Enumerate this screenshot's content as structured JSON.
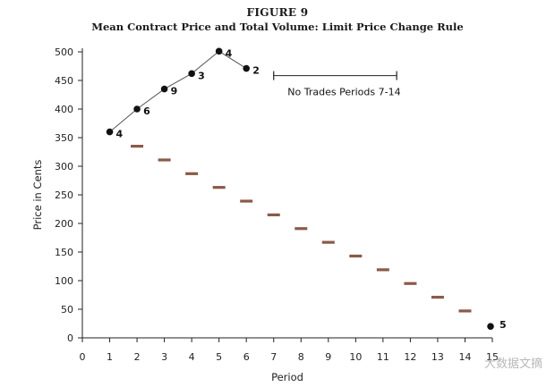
{
  "figure_label": "FIGURE 9",
  "watermark_text": "大数据文摘",
  "chart_data": {
    "type": "scatter",
    "title": "Mean Contract Price and Total Volume: Limit Price Change Rule",
    "xlabel": "Period",
    "ylabel": "Price in Cents",
    "xlim": [
      0,
      15
    ],
    "ylim": [
      0,
      500
    ],
    "xticks": [
      0,
      1,
      2,
      3,
      4,
      5,
      6,
      7,
      8,
      9,
      10,
      11,
      12,
      13,
      14,
      15
    ],
    "yticks": [
      0,
      50,
      100,
      150,
      200,
      250,
      300,
      350,
      400,
      450,
      500
    ],
    "grid": false,
    "legend": "none",
    "series": [
      {
        "type": "line",
        "points": [
          {
            "x": 1,
            "y": 360,
            "label": "4"
          },
          {
            "x": 2,
            "y": 400,
            "label": "6"
          },
          {
            "x": 3,
            "y": 435,
            "label": "9"
          },
          {
            "x": 4,
            "y": 462,
            "label": "3"
          },
          {
            "x": 5,
            "y": 501,
            "label": "4"
          },
          {
            "x": 6,
            "y": 471,
            "label": "2"
          }
        ]
      },
      {
        "type": "marker",
        "points": [
          {
            "x": 15,
            "y": 20,
            "label": "5"
          }
        ]
      },
      {
        "type": "dash",
        "points": [
          {
            "x": 2,
            "y": 335
          },
          {
            "x": 3,
            "y": 311
          },
          {
            "x": 4,
            "y": 287
          },
          {
            "x": 5,
            "y": 263
          },
          {
            "x": 6,
            "y": 239
          },
          {
            "x": 7,
            "y": 215
          },
          {
            "x": 8,
            "y": 191
          },
          {
            "x": 9,
            "y": 167
          },
          {
            "x": 10,
            "y": 143
          },
          {
            "x": 11,
            "y": 119
          },
          {
            "x": 12,
            "y": 95
          },
          {
            "x": 13,
            "y": 71
          },
          {
            "x": 14,
            "y": 47
          }
        ]
      }
    ],
    "annotations": [
      {
        "text": "No Trades Periods 7-14",
        "x_start": 7,
        "x_end": 11.5,
        "y": 460
      }
    ],
    "colors": {
      "line": "#555555",
      "marker": "#111111",
      "dash": "#8a5a48",
      "axis": "#222222"
    }
  }
}
